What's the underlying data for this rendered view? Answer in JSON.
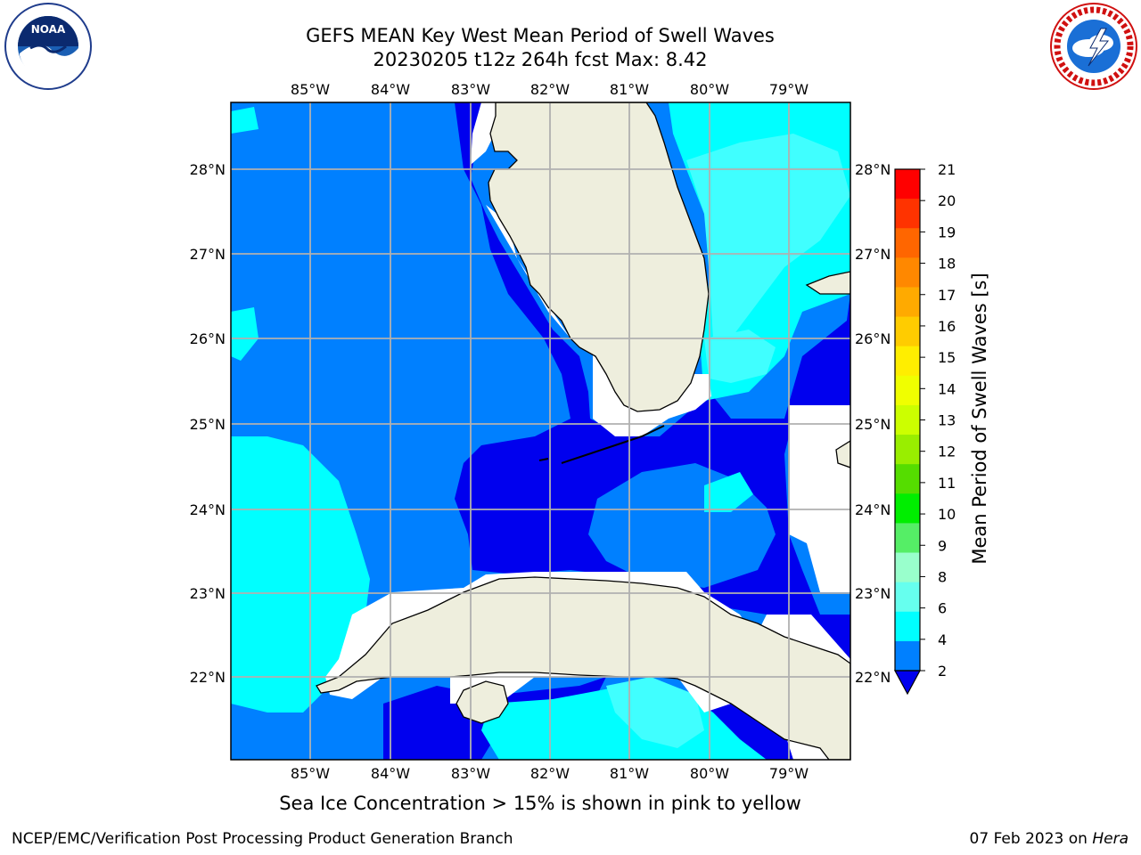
{
  "title": {
    "line1": "GEFS MEAN Key West Mean Period of Swell Waves",
    "line2": "20230205 t12z 264h fcst   Max: 8.42"
  },
  "logos": {
    "left": "noaa-logo",
    "right": "nws-logo"
  },
  "map": {
    "lon_labels": [
      "85°W",
      "84°W",
      "83°W",
      "82°W",
      "81°W",
      "80°W",
      "79°W"
    ],
    "lat_labels": [
      "28°N",
      "27°N",
      "26°N",
      "25°N",
      "24°N",
      "23°N",
      "22°N"
    ],
    "colors": {
      "land": "#eeeedd",
      "c2_4": "#0080ff",
      "c4_6": "#00ffff",
      "c6_8": "#40ffff",
      "under": "#0000ee",
      "nodata": "#ffffff",
      "grid": "#b0b0b0"
    }
  },
  "colorbar": {
    "label": "Mean Period of Swell Waves [s]",
    "ticks": [
      "21",
      "20",
      "19",
      "18",
      "17",
      "16",
      "15",
      "14",
      "13",
      "12",
      "11",
      "10",
      "9",
      "8",
      "6",
      "4",
      "2"
    ],
    "colors": [
      "#ff0000",
      "#ff3300",
      "#ff6600",
      "#ff8800",
      "#ffaa00",
      "#ffcc00",
      "#ffee00",
      "#f0ff00",
      "#ccff00",
      "#99ee00",
      "#55dd00",
      "#00ee00",
      "#55ee66",
      "#99ffcc",
      "#66ffee",
      "#00ffff",
      "#0080ff"
    ],
    "under_color": "#0000ee"
  },
  "note": "Sea Ice Concentration > 15% is shown in pink to yellow",
  "footer": {
    "left": "NCEP/EMC/Verification Post Processing Product Generation Branch",
    "date": "07 Feb 2023 on ",
    "machine": "Hera"
  }
}
